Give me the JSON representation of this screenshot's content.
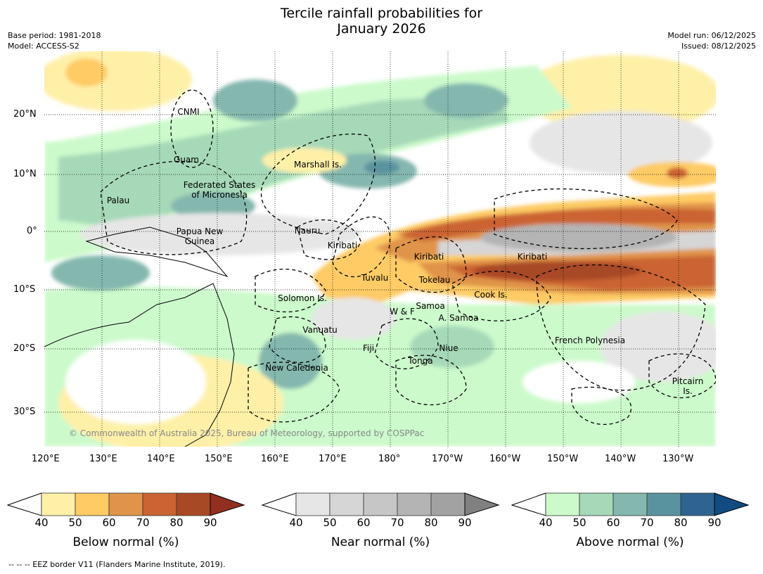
{
  "title_line1": "Tercile rainfall probabilities for",
  "title_line2": "January 2026",
  "base_period": "Base period: 1981-2018",
  "model": "Model: ACCESS-S2",
  "model_run": "Model run: 06/12/2025",
  "issued": "Issued: 08/12/2025",
  "copyright": "© Commonwealth of Australia 2025, Bureau of Meteorology, supported by COSPPac",
  "lat_ticks": [
    "20°N",
    "10°N",
    "0°",
    "10°S",
    "20°S",
    "30°S"
  ],
  "lon_ticks": [
    "120°E",
    "130°E",
    "140°E",
    "150°E",
    "160°E",
    "170°E",
    "180°",
    "170°W",
    "160°W",
    "150°W",
    "140°W",
    "130°W"
  ],
  "labels": {
    "cnmi": "CNMI",
    "guam": "Guam",
    "marshall": "Marshall Is.",
    "fsm1": "Federated States",
    "fsm2": "of Micronesia",
    "palau": "Palau",
    "png1": "Papua New",
    "png2": "Guinea",
    "nauru": "Nauru",
    "kiribati_w": "Kiribati",
    "kiribati_c": "Kiribati",
    "kiribati_e": "Kiribati",
    "tuvalu": "Tuvalu",
    "tokelau": "Tokelau",
    "cook": "Cook Is.",
    "solomon": "Solomon Is.",
    "samoa": "Samoa",
    "wf": "W & F",
    "asamoa": "A. Samoa",
    "vanuatu": "Vanuatu",
    "fiji": "Fiji",
    "niue": "Niue",
    "tonga": "Tonga",
    "fp": "French Polynesia",
    "newcal": "New Caledonia",
    "pitcairn1": "Pitcairn",
    "pitcairn2": "Is."
  },
  "colorbars": [
    {
      "title": "Below normal (%)",
      "ticks": [
        "40",
        "50",
        "60",
        "70",
        "80",
        "90"
      ],
      "colors": [
        "#fff0a8",
        "#fecb65",
        "#e0944a",
        "#cb6332",
        "#a84925",
        "#913020"
      ]
    },
    {
      "title": "Near normal (%)",
      "ticks": [
        "40",
        "50",
        "60",
        "70",
        "80",
        "90"
      ],
      "colors": [
        "#e6e6e6",
        "#d6d6d6",
        "#c6c6c6",
        "#b4b4b4",
        "#a2a2a2",
        "#808080"
      ]
    },
    {
      "title": "Above normal (%)",
      "ticks": [
        "40",
        "50",
        "60",
        "70",
        "80",
        "90"
      ],
      "colors": [
        "#ccfacb",
        "#a6d9b8",
        "#84b8ae",
        "#5a93a0",
        "#306490",
        "#124b80"
      ]
    }
  ],
  "eez_legend": "--  --  -- EEZ border V11 (Flanders Marine Institute, 2019)."
}
